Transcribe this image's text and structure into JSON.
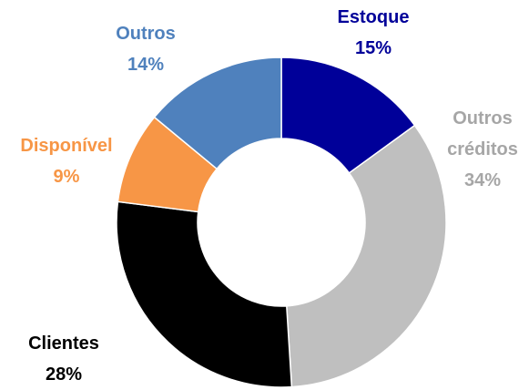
{
  "chart_data": {
    "type": "donut",
    "categories": [
      "Estoque",
      "Outros créditos",
      "Clientes",
      "Disponível",
      "Outros"
    ],
    "values": [
      15,
      34,
      28,
      9,
      14
    ],
    "value_labels": [
      "15%",
      "34%",
      "28%",
      "9%",
      "14%"
    ],
    "colors": [
      "#000099",
      "#bfbfbf",
      "#000000",
      "#f79646",
      "#4f81bd"
    ],
    "label_colors": [
      "#000099",
      "#a6a6a6",
      "#000000",
      "#f79646",
      "#4f81bd"
    ]
  }
}
